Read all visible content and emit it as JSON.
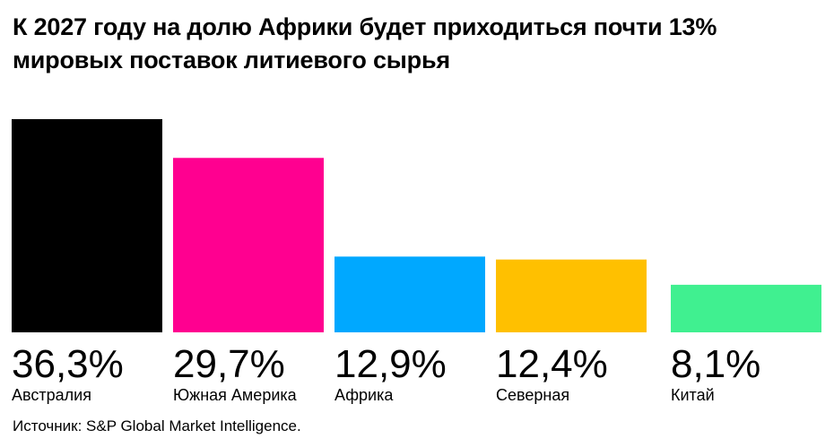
{
  "title_lines": [
    "К 2027 году на долю Африки будет приходиться почти 13%",
    "мировых поставок литиевого сырья"
  ],
  "source": "Источник: S&P Global Market Intelligence.",
  "chart_data": {
    "type": "bar",
    "categories": [
      "Австралия",
      "Южная Америка",
      "Африка",
      "Северная",
      "Китай"
    ],
    "values": [
      36.3,
      29.7,
      12.9,
      12.4,
      8.1
    ],
    "value_labels": [
      "36,3%",
      "29,7%",
      "12,9%",
      "12,4%",
      "8,1%"
    ],
    "colors": [
      "#000000",
      "#ff0090",
      "#00a8ff",
      "#ffc000",
      "#40f090"
    ],
    "ylim": [
      0,
      36.3
    ],
    "grid": false,
    "legend": "none"
  }
}
